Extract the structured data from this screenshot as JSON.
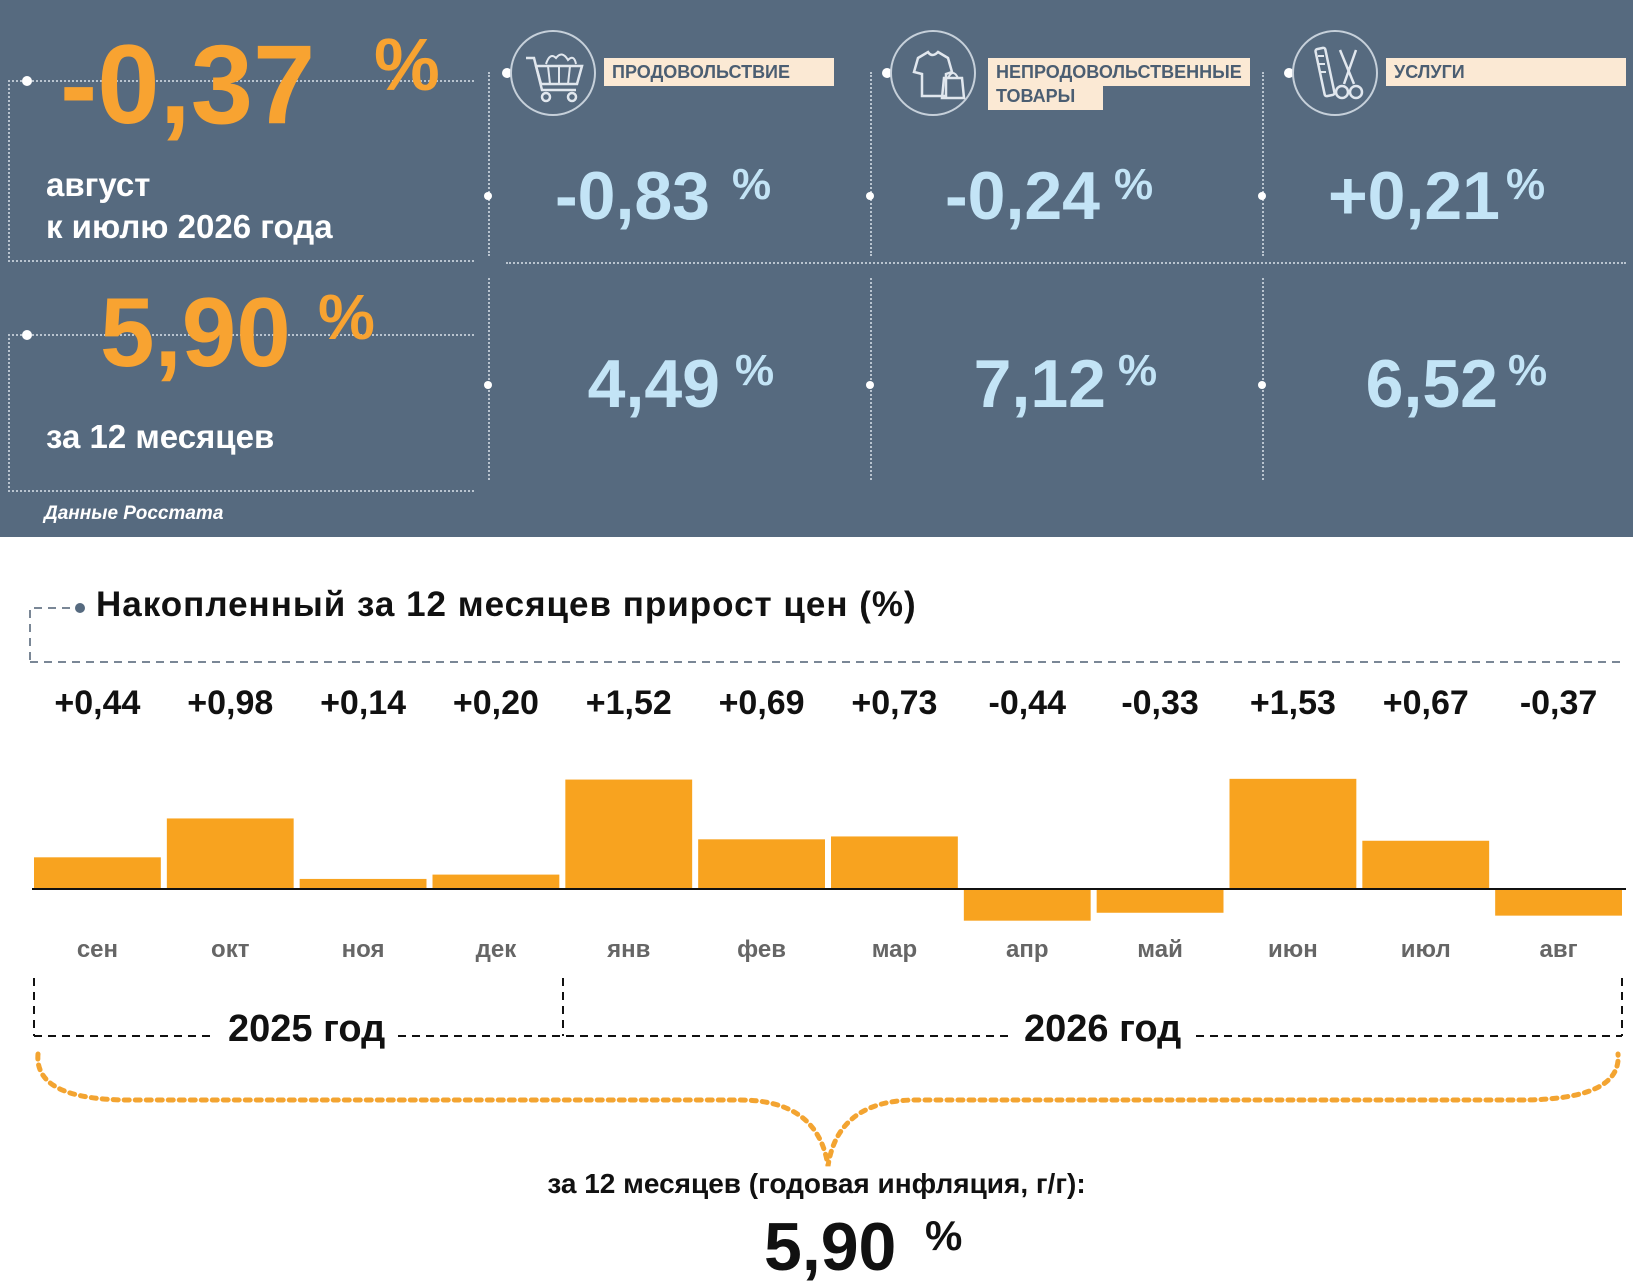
{
  "monthly": {
    "value": "-0,37",
    "unit": "%",
    "period_line1": "август",
    "period_line2": "к июлю 2026 года"
  },
  "yearly": {
    "value": "5,90",
    "unit": "%",
    "period": "за 12 месяцев"
  },
  "categories": [
    {
      "label": "ПРОДОВОЛЬСТВИЕ",
      "icon": "shopping-cart-icon",
      "monthly": "-0,83",
      "yearly": "4,49",
      "unit": "%"
    },
    {
      "label_line1": "НЕПРОДОВОЛЬСТВЕННЫЕ",
      "label_line2": "ТОВАРЫ",
      "icon": "clothing-bag-icon",
      "monthly": "-0,24",
      "yearly": "7,12",
      "unit": "%"
    },
    {
      "label": "УСЛУГИ",
      "icon": "comb-scissors-icon",
      "monthly": "+0,21",
      "yearly": "6,52",
      "unit": "%"
    }
  ],
  "source": "Данные Росстата",
  "chart_title": "Накопленный за 12 месяцев прирост цен (%)",
  "chart_data": {
    "type": "bar",
    "title": "Накопленный за 12 месяцев прирост цен (%)",
    "categories": [
      "сен",
      "окт",
      "ноя",
      "дек",
      "янв",
      "фев",
      "мар",
      "апр",
      "май",
      "июн",
      "июл",
      "авг"
    ],
    "values": [
      0.44,
      0.98,
      0.14,
      0.2,
      1.52,
      0.69,
      0.73,
      -0.44,
      -0.33,
      1.53,
      0.67,
      -0.37
    ],
    "value_labels": [
      "+0,44",
      "+0,98",
      "+0,14",
      "+0,20",
      "+1,52",
      "+0,69",
      "+0,73",
      "-0,44",
      "-0,33",
      "+1,53",
      "+0,67",
      "-0,37"
    ],
    "ylim": [
      -0.5,
      1.6
    ],
    "color": "#f8a31f",
    "grid": false,
    "groups": [
      {
        "label": "2025 год",
        "categories": [
          "сен",
          "окт",
          "ноя",
          "дек"
        ]
      },
      {
        "label": "2026 год",
        "categories": [
          "янв",
          "фев",
          "мар",
          "апр",
          "май",
          "июн",
          "июл",
          "авг"
        ]
      }
    ]
  },
  "summary": {
    "caption": "за 12 месяцев (годовая инфляция, г/г):",
    "value": "5,90",
    "unit": "%"
  },
  "colors": {
    "panel_bg": "#566a7f",
    "accent_orange": "#f8a331",
    "light_blue": "#c3e4f6",
    "label_bg": "#fbe9d4",
    "bar": "#f8a31f"
  }
}
